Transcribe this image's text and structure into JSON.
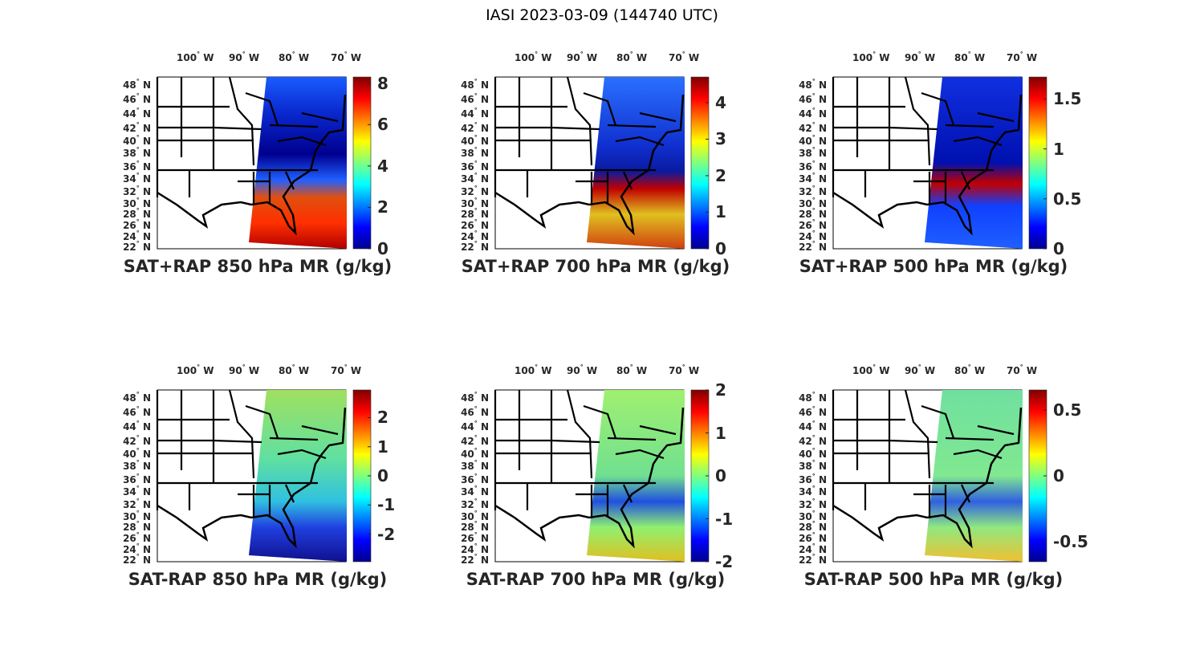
{
  "figure": {
    "title": "IASI 2023-03-09 (144740 UTC)",
    "colormap": "jet",
    "lon_labels": [
      "100",
      "90",
      "80",
      "70"
    ],
    "lon_suffix": "W",
    "lat_labels": [
      "48",
      "46",
      "44",
      "42",
      "40",
      "38",
      "36",
      "34",
      "32",
      "30",
      "28",
      "26",
      "24",
      "22"
    ],
    "lat_suffix": "N",
    "degree_symbol": "°"
  },
  "panels": [
    {
      "title": "SAT+RAP 850 hPa MR (g/kg)",
      "clim": [
        0,
        8.3
      ],
      "ticks": [
        "0",
        "2",
        "4",
        "6",
        "8"
      ],
      "tick_values": [
        0,
        2,
        4,
        6,
        8
      ]
    },
    {
      "title": "SAT+RAP 700 hPa MR (g/kg)",
      "clim": [
        0,
        4.7
      ],
      "ticks": [
        "0",
        "1",
        "2",
        "3",
        "4"
      ],
      "tick_values": [
        0,
        1,
        2,
        3,
        4
      ]
    },
    {
      "title": "SAT+RAP 500 hPa MR (g/kg)",
      "clim": [
        0,
        1.72
      ],
      "ticks": [
        "0",
        "0.5",
        "1",
        "1.5"
      ],
      "tick_values": [
        0,
        0.5,
        1,
        1.5
      ]
    },
    {
      "title": "SAT-RAP 850 hPa MR (g/kg)",
      "clim": [
        -2.95,
        2.95
      ],
      "ticks": [
        "-2",
        "-1",
        "0",
        "1",
        "2"
      ],
      "tick_values": [
        -2,
        -1,
        0,
        1,
        2
      ]
    },
    {
      "title": "SAT-RAP 700 hPa MR (g/kg)",
      "clim": [
        -2,
        2
      ],
      "ticks": [
        "-2",
        "-1",
        "0",
        "1",
        "2"
      ],
      "tick_values": [
        -2,
        -1,
        0,
        1,
        2
      ]
    },
    {
      "title": "SAT-RAP 500 hPa MR (g/kg)",
      "clim": [
        -0.65,
        0.65
      ],
      "ticks": [
        "-0.5",
        "0",
        "0.5"
      ],
      "tick_values": [
        -0.5,
        0,
        0.5
      ]
    }
  ]
}
